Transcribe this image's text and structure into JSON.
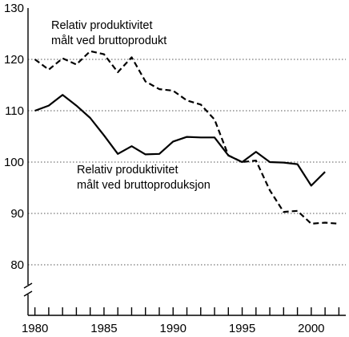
{
  "chart_data": {
    "type": "line",
    "title": "",
    "xlabel": "",
    "ylabel": "",
    "ylim": [
      70,
      130
    ],
    "y_ticks": [
      80,
      90,
      100,
      110,
      120,
      130
    ],
    "x_tick_labels": [
      1980,
      1985,
      1990,
      1995,
      2000
    ],
    "xlim": [
      1979.5,
      2002.5
    ],
    "grid": "horizontal dotted",
    "axis_break": true,
    "series": [
      {
        "name": "Relativ produktivitet målt ved bruttoprodukt",
        "style": "dashed",
        "x": [
          1980,
          1981,
          1982,
          1983,
          1984,
          1985,
          1986,
          1987,
          1988,
          1989,
          1990,
          1991,
          1992,
          1993,
          1994,
          1995,
          1996,
          1997,
          1998,
          1999,
          2000,
          2001,
          2002
        ],
        "values": [
          120,
          118,
          120.2,
          119,
          121.6,
          121,
          117.5,
          120.4,
          115.7,
          114.2,
          113.9,
          112,
          111.2,
          108.3,
          101.3,
          100,
          100.3,
          94.5,
          90.3,
          90.5,
          88,
          88.2,
          88
        ]
      },
      {
        "name": "Relativ produktivitet målt ved bruttoproduksjon",
        "style": "solid",
        "x": [
          1980,
          1981,
          1982,
          1983,
          1984,
          1985,
          1986,
          1987,
          1988,
          1989,
          1990,
          1991,
          1992,
          1993,
          1994,
          1995,
          1996,
          1997,
          1998,
          1999,
          2000,
          2001
        ],
        "values": [
          110,
          111,
          113.1,
          111,
          108.6,
          105.2,
          101.6,
          103.1,
          101.5,
          101.6,
          104,
          104.9,
          104.8,
          104.8,
          101.3,
          100,
          102,
          100,
          99.9,
          99.6,
          95.4,
          98.1
        ]
      }
    ],
    "annotations": [
      {
        "lines": [
          "Relativ produktivitet",
          "målt ved bruttoprodukt"
        ]
      },
      {
        "lines": [
          "Relativ produktivitet",
          "målt ved bruttoproduksjon"
        ]
      }
    ]
  }
}
